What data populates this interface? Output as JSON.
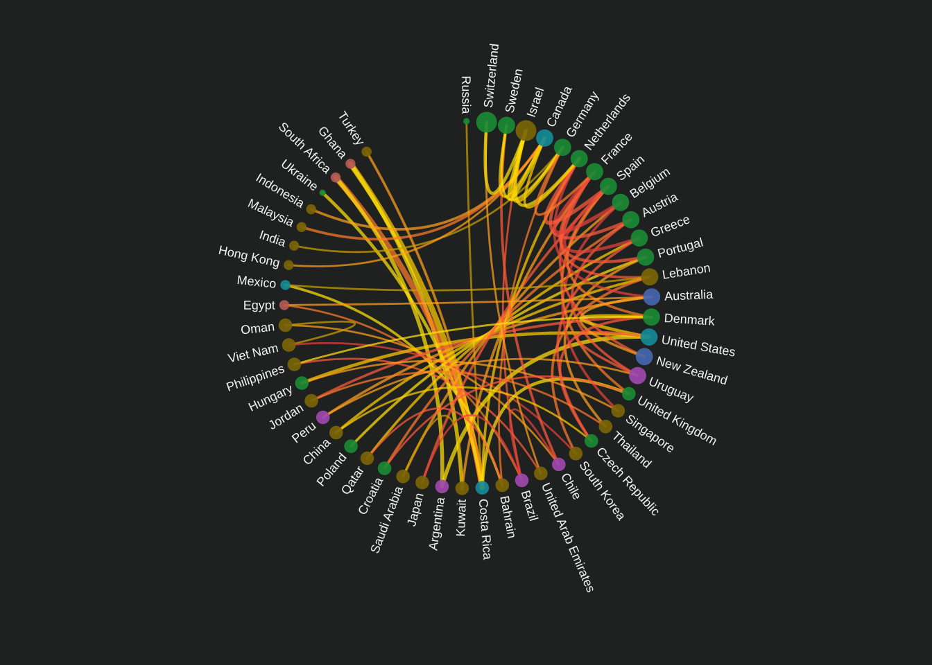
{
  "palette": {
    "green": "#1a8a35",
    "olive": "#7a6506",
    "teal": "#138a96",
    "blue": "#4566b0",
    "purple": "#9d49ad",
    "rose": "#b25a55",
    "link_colors": [
      "#ffe20a",
      "#ffcc00",
      "#ff9f1c",
      "#ff7a2a",
      "#ff5a3a",
      "#e8413a",
      "#c9a000"
    ]
  },
  "nodes": [
    {
      "name": "Russia",
      "color": "green",
      "size": 1
    },
    {
      "name": "Switzerland",
      "color": "green",
      "size": 5
    },
    {
      "name": "Sweden",
      "color": "green",
      "size": 4
    },
    {
      "name": "Israel",
      "color": "olive",
      "size": 5
    },
    {
      "name": "Canada",
      "color": "teal",
      "size": 4
    },
    {
      "name": "Germany",
      "color": "green",
      "size": 4
    },
    {
      "name": "Netherlands",
      "color": "green",
      "size": 4
    },
    {
      "name": "France",
      "color": "green",
      "size": 4
    },
    {
      "name": "Spain",
      "color": "green",
      "size": 4
    },
    {
      "name": "Belgium",
      "color": "green",
      "size": 4
    },
    {
      "name": "Austria",
      "color": "green",
      "size": 4
    },
    {
      "name": "Greece",
      "color": "green",
      "size": 4
    },
    {
      "name": "Portugal",
      "color": "green",
      "size": 4
    },
    {
      "name": "Lebanon",
      "color": "olive",
      "size": 4
    },
    {
      "name": "Australia",
      "color": "blue",
      "size": 4
    },
    {
      "name": "Denmark",
      "color": "green",
      "size": 4
    },
    {
      "name": "United States",
      "color": "teal",
      "size": 4
    },
    {
      "name": "New Zealand",
      "color": "blue",
      "size": 4
    },
    {
      "name": "Uruguay",
      "color": "purple",
      "size": 4
    },
    {
      "name": "United Kingdom",
      "color": "green",
      "size": 3
    },
    {
      "name": "Singapore",
      "color": "olive",
      "size": 3
    },
    {
      "name": "Thailand",
      "color": "olive",
      "size": 3
    },
    {
      "name": "Czech Republic",
      "color": "green",
      "size": 3
    },
    {
      "name": "South Korea",
      "color": "olive",
      "size": 3
    },
    {
      "name": "Chile",
      "color": "purple",
      "size": 3
    },
    {
      "name": "United Arab Emirates",
      "color": "olive",
      "size": 3
    },
    {
      "name": "Brazil",
      "color": "purple",
      "size": 3
    },
    {
      "name": "Bahrain",
      "color": "olive",
      "size": 3
    },
    {
      "name": "Costa Rica",
      "color": "teal",
      "size": 3
    },
    {
      "name": "Kuwait",
      "color": "olive",
      "size": 3
    },
    {
      "name": "Argentina",
      "color": "purple",
      "size": 3
    },
    {
      "name": "Japan",
      "color": "olive",
      "size": 3
    },
    {
      "name": "Saudi Arabia",
      "color": "olive",
      "size": 3
    },
    {
      "name": "Croatia",
      "color": "green",
      "size": 3
    },
    {
      "name": "Qatar",
      "color": "olive",
      "size": 3
    },
    {
      "name": "Poland",
      "color": "green",
      "size": 3
    },
    {
      "name": "China",
      "color": "olive",
      "size": 3
    },
    {
      "name": "Peru",
      "color": "purple",
      "size": 3
    },
    {
      "name": "Jordan",
      "color": "olive",
      "size": 3
    },
    {
      "name": "Hungary",
      "color": "green",
      "size": 3
    },
    {
      "name": "Philippines",
      "color": "olive",
      "size": 3
    },
    {
      "name": "Viet Nam",
      "color": "olive",
      "size": 3
    },
    {
      "name": "Oman",
      "color": "olive",
      "size": 3
    },
    {
      "name": "Egypt",
      "color": "rose",
      "size": 2
    },
    {
      "name": "Mexico",
      "color": "teal",
      "size": 2
    },
    {
      "name": "Hong Kong",
      "color": "olive",
      "size": 2
    },
    {
      "name": "India",
      "color": "olive",
      "size": 2
    },
    {
      "name": "Malaysia",
      "color": "olive",
      "size": 2
    },
    {
      "name": "Indonesia",
      "color": "olive",
      "size": 2
    },
    {
      "name": "Ukraine",
      "color": "green",
      "size": 1
    },
    {
      "name": "South Africa",
      "color": "rose",
      "size": 2
    },
    {
      "name": "Ghana",
      "color": "rose",
      "size": 2
    },
    {
      "name": "Turkey",
      "color": "olive",
      "size": 2
    }
  ],
  "links": [
    {
      "source": "Russia",
      "target": "Costa Rica",
      "weight": 2,
      "color": 6
    },
    {
      "source": "Turkey",
      "target": "Costa Rica",
      "weight": 3,
      "color": 2
    },
    {
      "source": "Ghana",
      "target": "Costa Rica",
      "weight": 8,
      "color": 1
    },
    {
      "source": "Ghana",
      "target": "Kuwait",
      "weight": 5,
      "color": 0
    },
    {
      "source": "South Africa",
      "target": "Costa Rica",
      "weight": 8,
      "color": 3
    },
    {
      "source": "South Africa",
      "target": "Argentina",
      "weight": 5,
      "color": 0
    },
    {
      "source": "Ukraine",
      "target": "Costa Rica",
      "weight": 4,
      "color": 0
    },
    {
      "source": "Indonesia",
      "target": "Canada",
      "weight": 3,
      "color": 2
    },
    {
      "source": "Malaysia",
      "target": "Canada",
      "weight": 3,
      "color": 3
    },
    {
      "source": "India",
      "target": "Germany",
      "weight": 2,
      "color": 6
    },
    {
      "source": "Hong Kong",
      "target": "Canada",
      "weight": 2,
      "color": 2
    },
    {
      "source": "Mexico",
      "target": "Bahrain",
      "weight": 3,
      "color": 0
    },
    {
      "source": "Egypt",
      "target": "Brazil",
      "weight": 2,
      "color": 3
    },
    {
      "source": "Oman",
      "target": "Chile",
      "weight": 2,
      "color": 2
    },
    {
      "source": "Oman",
      "target": "Viet Nam",
      "weight": 2,
      "color": 6
    },
    {
      "source": "Viet Nam",
      "target": "South Korea",
      "weight": 2,
      "color": 5
    },
    {
      "source": "Philippines",
      "target": "United Arab Emirates",
      "weight": 2,
      "color": 4
    },
    {
      "source": "Hungary",
      "target": "United States",
      "weight": 4,
      "color": 1
    },
    {
      "source": "Jordan",
      "target": "Denmark",
      "weight": 3,
      "color": 4
    },
    {
      "source": "Peru",
      "target": "Australia",
      "weight": 3,
      "color": 2
    },
    {
      "source": "China",
      "target": "Lebanon",
      "weight": 3,
      "color": 1
    },
    {
      "source": "Poland",
      "target": "Portugal",
      "weight": 3,
      "color": 0
    },
    {
      "source": "Qatar",
      "target": "Greece",
      "weight": 3,
      "color": 1
    },
    {
      "source": "Croatia",
      "target": "Austria",
      "weight": 3,
      "color": 3
    },
    {
      "source": "Saudi Arabia",
      "target": "Belgium",
      "weight": 3,
      "color": 2
    },
    {
      "source": "Japan",
      "target": "Spain",
      "weight": 3,
      "color": 4
    },
    {
      "source": "Argentina",
      "target": "United States",
      "weight": 5,
      "color": 0
    },
    {
      "source": "Kuwait",
      "target": "France",
      "weight": 3,
      "color": 2
    },
    {
      "source": "Costa Rica",
      "target": "Netherlands",
      "weight": 3,
      "color": 1
    },
    {
      "source": "Costa Rica",
      "target": "United Kingdom",
      "weight": 4,
      "color": 0
    },
    {
      "source": "Bahrain",
      "target": "Germany",
      "weight": 2,
      "color": 3
    },
    {
      "source": "Brazil",
      "target": "Israel",
      "weight": 2,
      "color": 4
    },
    {
      "source": "Brazil",
      "target": "Chile",
      "weight": 2,
      "color": 5
    },
    {
      "source": "United Arab Emirates",
      "target": "Switzerland",
      "weight": 2,
      "color": 2
    },
    {
      "source": "Chile",
      "target": "Sweden",
      "weight": 3,
      "color": 4
    },
    {
      "source": "South Korea",
      "target": "Lebanon",
      "weight": 3,
      "color": 3
    },
    {
      "source": "Czech Republic",
      "target": "Greece",
      "weight": 3,
      "color": 4
    },
    {
      "source": "Thailand",
      "target": "Portugal",
      "weight": 3,
      "color": 2
    },
    {
      "source": "Singapore",
      "target": "Belgium",
      "weight": 3,
      "color": 5
    },
    {
      "source": "United Kingdom",
      "target": "Spain",
      "weight": 3,
      "color": 3
    },
    {
      "source": "Uruguay",
      "target": "Austria",
      "weight": 3,
      "color": 4
    },
    {
      "source": "New Zealand",
      "target": "France",
      "weight": 3,
      "color": 4
    },
    {
      "source": "United States",
      "target": "Denmark",
      "weight": 4,
      "color": 1
    },
    {
      "source": "Australia",
      "target": "Netherlands",
      "weight": 3,
      "color": 5
    },
    {
      "source": "Denmark",
      "target": "Spain",
      "weight": 3,
      "color": 3
    },
    {
      "source": "Lebanon",
      "target": "France",
      "weight": 3,
      "color": 4
    },
    {
      "source": "Portugal",
      "target": "France",
      "weight": 4,
      "color": 4
    },
    {
      "source": "Greece",
      "target": "Spain",
      "weight": 4,
      "color": 5
    },
    {
      "source": "Austria",
      "target": "Netherlands",
      "weight": 4,
      "color": 4
    },
    {
      "source": "Belgium",
      "target": "France",
      "weight": 5,
      "color": 5
    },
    {
      "source": "Spain",
      "target": "Netherlands",
      "weight": 5,
      "color": 4
    },
    {
      "source": "Netherlands",
      "target": "Israel",
      "weight": 4,
      "color": 0
    },
    {
      "source": "Germany",
      "target": "Israel",
      "weight": 4,
      "color": 1
    },
    {
      "source": "Canada",
      "target": "Israel",
      "weight": 5,
      "color": 0
    },
    {
      "source": "Canada",
      "target": "Sweden",
      "weight": 3,
      "color": 1
    },
    {
      "source": "Israel",
      "target": "Switzerland",
      "weight": 4,
      "color": 0
    },
    {
      "source": "Germany",
      "target": "Sweden",
      "weight": 3,
      "color": 0
    },
    {
      "source": "Netherlands",
      "target": "Canada",
      "weight": 3,
      "color": 1
    },
    {
      "source": "France",
      "target": "Germany",
      "weight": 3,
      "color": 3
    },
    {
      "source": "United States",
      "target": "Uruguay",
      "weight": 3,
      "color": 4
    },
    {
      "source": "Australia",
      "target": "New Zealand",
      "weight": 3,
      "color": 2
    },
    {
      "source": "Denmark",
      "target": "Czech Republic",
      "weight": 3,
      "color": 4
    },
    {
      "source": "Hungary",
      "target": "Singapore",
      "weight": 2,
      "color": 2
    },
    {
      "source": "Jordan",
      "target": "Thailand",
      "weight": 2,
      "color": 3
    },
    {
      "source": "Peru",
      "target": "Uruguay",
      "weight": 2,
      "color": 2
    },
    {
      "source": "China",
      "target": "Czech Republic",
      "weight": 2,
      "color": 1
    },
    {
      "source": "Japan",
      "target": "Brazil",
      "weight": 2,
      "color": 5
    },
    {
      "source": "Saudi Arabia",
      "target": "Kuwait",
      "weight": 2,
      "color": 6
    },
    {
      "source": "Qatar",
      "target": "Bahrain",
      "weight": 2,
      "color": 4
    },
    {
      "source": "Mexico",
      "target": "Lebanon",
      "weight": 2,
      "color": 6
    },
    {
      "source": "Egypt",
      "target": "Australia",
      "weight": 2,
      "color": 2
    },
    {
      "source": "Philippines",
      "target": "Denmark",
      "weight": 2,
      "color": 0
    },
    {
      "source": "Croatia",
      "target": "United Kingdom",
      "weight": 2,
      "color": 4
    }
  ]
}
